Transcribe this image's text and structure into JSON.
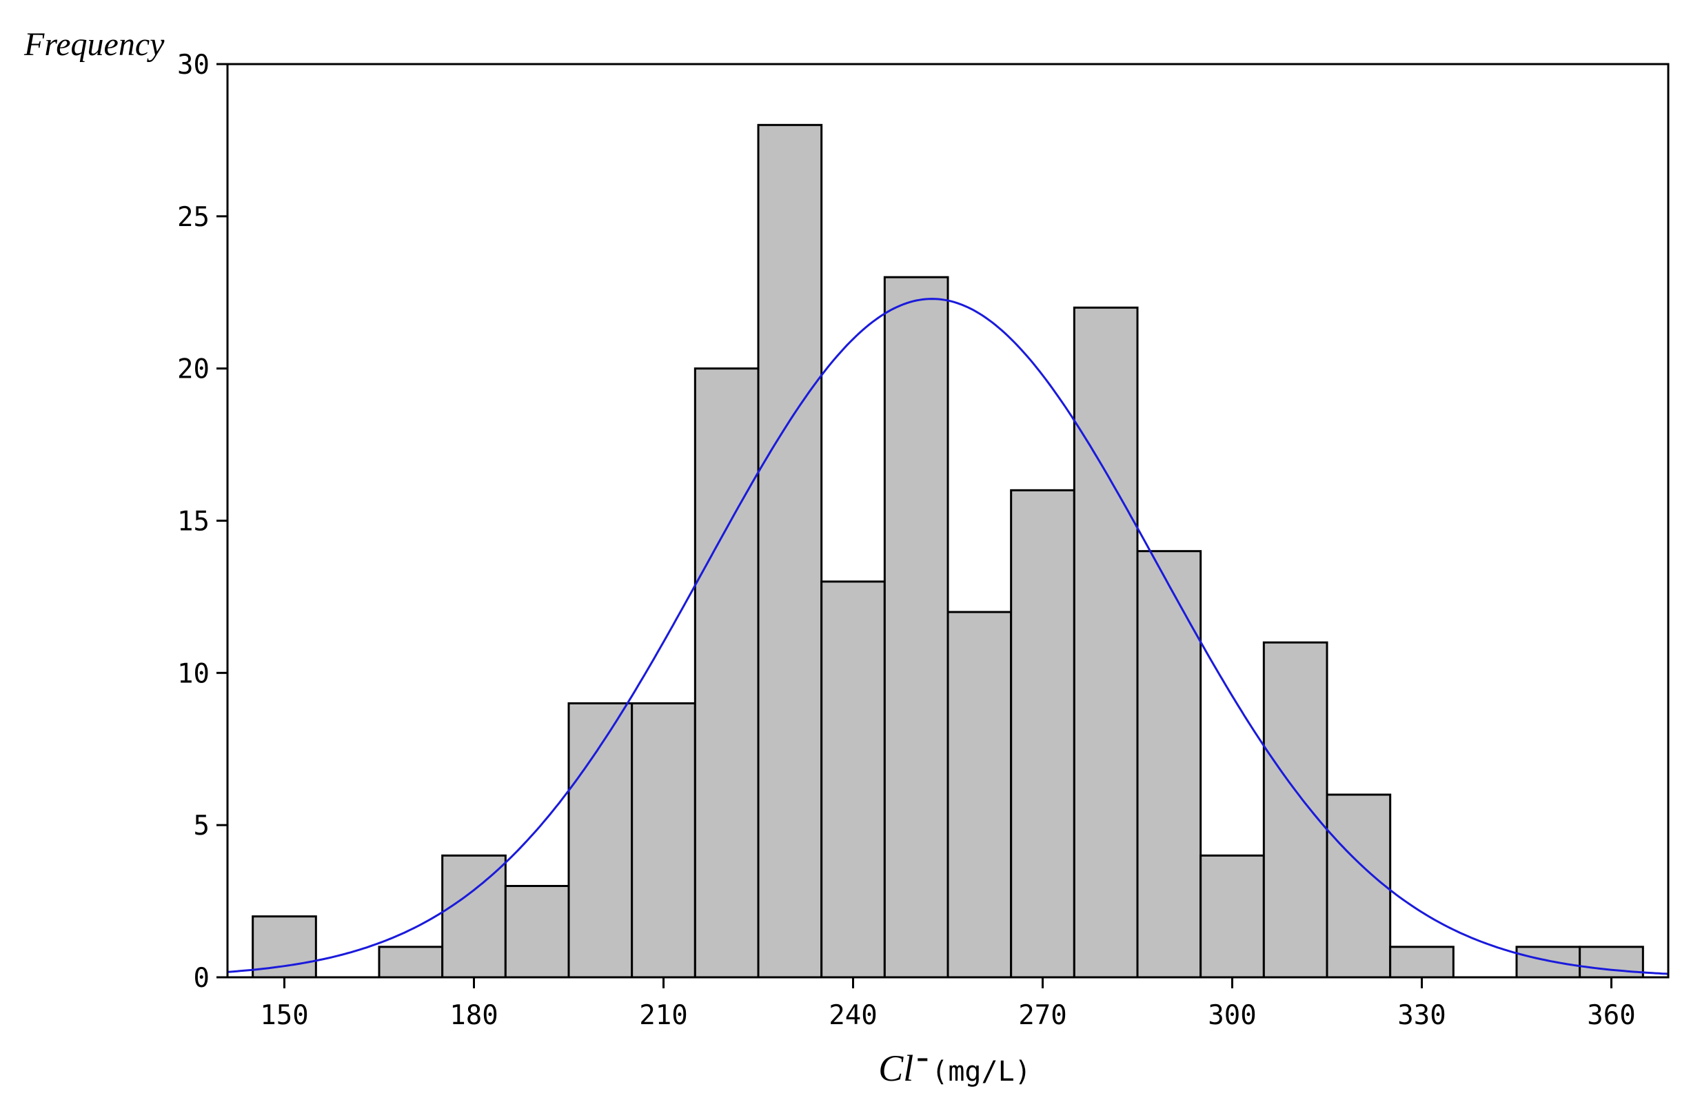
{
  "chart_data": {
    "type": "bar",
    "subtype": "histogram",
    "ylabel": "Frequency",
    "xlabel": {
      "main": "Cl",
      "superscript": "-",
      "unit": "(mg/L)"
    },
    "x_ticks": [
      150,
      180,
      210,
      240,
      270,
      300,
      330,
      360
    ],
    "y_ticks": [
      0,
      5,
      10,
      15,
      20,
      25,
      30
    ],
    "xlim": [
      141,
      369
    ],
    "ylim": [
      0,
      30
    ],
    "bin_width": 10,
    "bins": [
      {
        "start": 145,
        "end": 155,
        "count": 2
      },
      {
        "start": 155,
        "end": 165,
        "count": 0
      },
      {
        "start": 165,
        "end": 175,
        "count": 1
      },
      {
        "start": 175,
        "end": 185,
        "count": 4
      },
      {
        "start": 185,
        "end": 195,
        "count": 3
      },
      {
        "start": 195,
        "end": 205,
        "count": 9
      },
      {
        "start": 205,
        "end": 215,
        "count": 9
      },
      {
        "start": 215,
        "end": 225,
        "count": 20
      },
      {
        "start": 225,
        "end": 235,
        "count": 28
      },
      {
        "start": 235,
        "end": 245,
        "count": 13
      },
      {
        "start": 245,
        "end": 255,
        "count": 23
      },
      {
        "start": 255,
        "end": 265,
        "count": 12
      },
      {
        "start": 265,
        "end": 275,
        "count": 16
      },
      {
        "start": 275,
        "end": 285,
        "count": 22
      },
      {
        "start": 285,
        "end": 295,
        "count": 14
      },
      {
        "start": 295,
        "end": 305,
        "count": 4
      },
      {
        "start": 305,
        "end": 315,
        "count": 11
      },
      {
        "start": 315,
        "end": 325,
        "count": 6
      },
      {
        "start": 325,
        "end": 335,
        "count": 1
      },
      {
        "start": 335,
        "end": 345,
        "count": 0
      },
      {
        "start": 345,
        "end": 355,
        "count": 1
      },
      {
        "start": 355,
        "end": 365,
        "count": 1
      }
    ],
    "normal_curve": {
      "mean": 252.5,
      "std": 35.8,
      "n": 200,
      "color": "#1a1adc"
    },
    "bar_fill": "#c0c0c0",
    "bar_stroke": "#000000",
    "grid": false,
    "legend": "none"
  }
}
